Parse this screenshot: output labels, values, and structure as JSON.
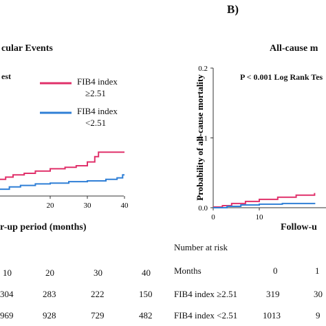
{
  "panel_b_label": "B)",
  "chart_data": [
    {
      "type": "line",
      "title": "cular Events",
      "xlabel": "r-up period (months)",
      "ylabel": "",
      "xlim": [
        0,
        40
      ],
      "ylim": [
        0,
        0.2
      ],
      "x_ticks": [
        "20",
        "30",
        "40"
      ],
      "annotation": "est",
      "legend_position": "top-right",
      "series": [
        {
          "name_line1": "FIB4 index",
          "name_line2": "≥2.51",
          "color": "#e0306a",
          "steps": [
            [
              0,
              0.01
            ],
            [
              2,
              0.015
            ],
            [
              4,
              0.018
            ],
            [
              6,
              0.022
            ],
            [
              8,
              0.025
            ],
            [
              10,
              0.028
            ],
            [
              13,
              0.03
            ],
            [
              16,
              0.033
            ],
            [
              20,
              0.036
            ],
            [
              24,
              0.038
            ],
            [
              27,
              0.04
            ],
            [
              30,
              0.045
            ],
            [
              32,
              0.052
            ],
            [
              33,
              0.058
            ],
            [
              35,
              0.058
            ],
            [
              40,
              0.058
            ]
          ]
        },
        {
          "name_line1": "FIB4 index",
          "name_line2": "<2.51",
          "color": "#2f7fd6",
          "steps": [
            [
              0,
              0.004
            ],
            [
              3,
              0.007
            ],
            [
              6,
              0.009
            ],
            [
              9,
              0.012
            ],
            [
              12,
              0.014
            ],
            [
              16,
              0.016
            ],
            [
              20,
              0.017
            ],
            [
              25,
              0.019
            ],
            [
              30,
              0.02
            ],
            [
              35,
              0.022
            ],
            [
              38,
              0.024
            ],
            [
              39.5,
              0.028
            ],
            [
              40,
              0.028
            ]
          ]
        }
      ],
      "risk_table": {
        "months": [
          "10",
          "20",
          "30",
          "40"
        ],
        "fib4_high": [
          "304",
          "283",
          "222",
          "150"
        ],
        "fib4_low": [
          "969",
          "928",
          "729",
          "482"
        ]
      }
    },
    {
      "type": "line",
      "title": "All-cause m",
      "xlabel": "Follow-u",
      "ylabel": "Probability  of all-cause mortality",
      "xlim": [
        0,
        40
      ],
      "ylim": [
        0,
        0.2
      ],
      "y_ticks": [
        "0.2",
        "0.1",
        "0.0"
      ],
      "x_ticks": [
        "0",
        "10"
      ],
      "annotation": "P < 0.001 Log Rank Tes",
      "series": [
        {
          "name": "FIB4 index ≥2.51",
          "color": "#e0306a",
          "steps": [
            [
              0,
              0.001
            ],
            [
              2,
              0.003
            ],
            [
              4,
              0.006
            ],
            [
              7,
              0.009
            ],
            [
              10,
              0.012
            ],
            [
              14,
              0.015
            ],
            [
              18,
              0.018
            ],
            [
              22,
              0.021
            ]
          ]
        },
        {
          "name": "FIB4 index <2.51",
          "color": "#2f7fd6",
          "steps": [
            [
              0,
              0.0
            ],
            [
              3,
              0.002
            ],
            [
              6,
              0.004
            ],
            [
              10,
              0.005
            ],
            [
              15,
              0.006
            ],
            [
              22,
              0.007
            ]
          ]
        }
      ],
      "risk_table": {
        "header": "Number at risk",
        "months_label": "Months",
        "months": [
          "0",
          "1"
        ],
        "fib4_high_label": "FIB4 index ≥2.51",
        "fib4_high": [
          "319",
          "30"
        ],
        "fib4_low_label": "FIB4 index <2.51",
        "fib4_low": [
          "1013",
          "9"
        ]
      }
    }
  ]
}
